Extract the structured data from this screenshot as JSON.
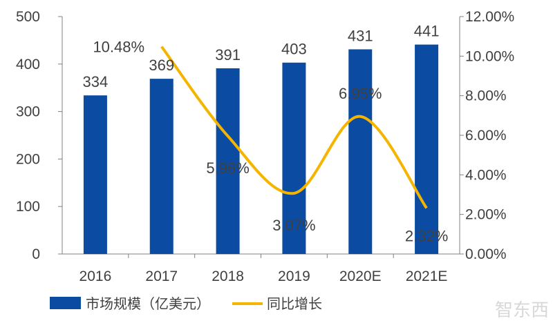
{
  "chart_data": {
    "type": "bar+line",
    "categories": [
      "2016",
      "2017",
      "2018",
      "2019",
      "2020E",
      "2021E"
    ],
    "series": [
      {
        "name": "市场规模（亿美元）",
        "type": "bar",
        "axis": "left",
        "color": "#0b4ba1",
        "values": [
          334,
          369,
          391,
          403,
          431,
          441
        ],
        "labels": [
          "334",
          "369",
          "391",
          "403",
          "431",
          "441"
        ]
      },
      {
        "name": "同比增长",
        "type": "line",
        "axis": "right",
        "color": "#f5b400",
        "x": [
          "2017",
          "2018",
          "2019",
          "2020E",
          "2021E"
        ],
        "values": [
          10.48,
          5.96,
          3.07,
          6.95,
          2.32
        ],
        "labels": [
          "10.48%",
          "5.96%",
          "3.07%",
          "6.95%",
          "2.32%"
        ]
      }
    ],
    "left_axis": {
      "ylim": [
        0,
        500
      ],
      "ticks": [
        "0",
        "100",
        "200",
        "300",
        "400",
        "500"
      ]
    },
    "right_axis": {
      "ylim": [
        0,
        12
      ],
      "ticks": [
        "0.00%",
        "2.00%",
        "4.00%",
        "6.00%",
        "8.00%",
        "10.00%",
        "12.00%"
      ]
    },
    "grid": false,
    "legend": "bottom"
  },
  "watermark": "智东西"
}
